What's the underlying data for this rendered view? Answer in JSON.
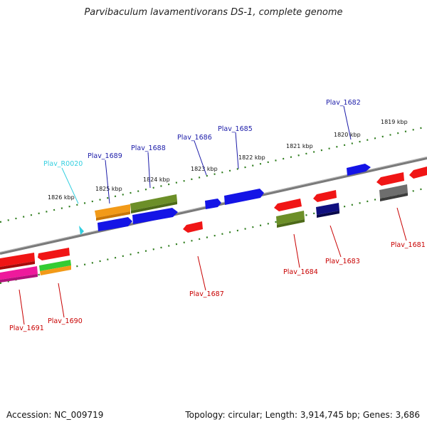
{
  "title": "Parvibaculum lavamentivorans DS-1, complete genome",
  "footer": {
    "accession": "Accession: NC_009719",
    "topology": "Topology: circular; Length: 3,914,745 bp; Genes: 3,686"
  },
  "colors": {
    "backbone": "#7a7a7a",
    "ruler": "#2f7d1e",
    "forward_label": "#1a1aa8",
    "reverse_label": "#c80000",
    "rna_label": "#33cfe0"
  },
  "ruler_ticks": [
    "1826 kbp",
    "1825 kbp",
    "1824 kbp",
    "1823 kbp",
    "1822 kbp",
    "1821 kbp",
    "1820 kbp",
    "1819 kbp"
  ],
  "gene_labels": [
    {
      "text": "Plav_R0020",
      "strand": "rna"
    },
    {
      "text": "Plav_1689",
      "strand": "forward"
    },
    {
      "text": "Plav_1688",
      "strand": "forward"
    },
    {
      "text": "Plav_1686",
      "strand": "forward"
    },
    {
      "text": "Plav_1685",
      "strand": "forward"
    },
    {
      "text": "Plav_1682",
      "strand": "forward"
    },
    {
      "text": "Plav_1691",
      "strand": "reverse"
    },
    {
      "text": "Plav_1690",
      "strand": "reverse"
    },
    {
      "text": "Plav_1687",
      "strand": "reverse"
    },
    {
      "text": "Plav_1684",
      "strand": "reverse"
    },
    {
      "text": "Plav_1683",
      "strand": "reverse"
    },
    {
      "text": "Plav_1681",
      "strand": "reverse"
    }
  ]
}
